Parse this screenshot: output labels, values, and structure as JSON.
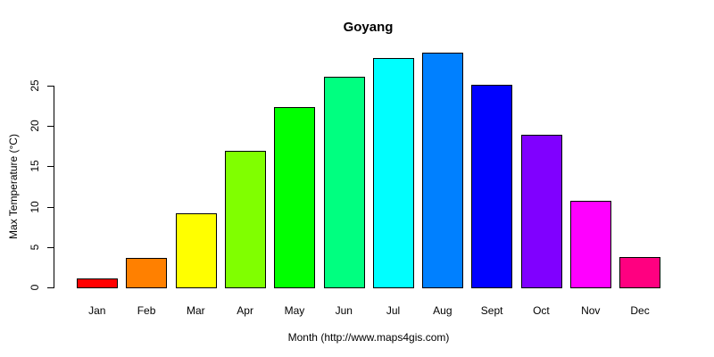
{
  "title": "Goyang",
  "chart_data": {
    "type": "bar",
    "title": "Goyang",
    "xlabel": "Month (http://www.maps4gis.com)",
    "ylabel": "Max Temperature (°C)",
    "categories": [
      "Jan",
      "Feb",
      "Mar",
      "Apr",
      "May",
      "Jun",
      "Jul",
      "Aug",
      "Sept",
      "Oct",
      "Nov",
      "Dec"
    ],
    "values": [
      1.1,
      3.7,
      9.2,
      16.9,
      22.3,
      26.1,
      28.4,
      29.1,
      25.1,
      18.9,
      10.7,
      3.8
    ],
    "bar_colors": [
      "#FF0000",
      "#FF8000",
      "#FFFF00",
      "#80FF00",
      "#00FF00",
      "#00FF80",
      "#00FFFF",
      "#0080FF",
      "#0000FF",
      "#8000FF",
      "#FF00FF",
      "#FF0080"
    ],
    "bar_border_color": "#000000",
    "yticks": [
      0,
      5,
      10,
      15,
      20,
      25
    ],
    "ylim": [
      0,
      29.1
    ],
    "grid": false,
    "legend": "none",
    "background_color": "#FFFFFF",
    "text_color": "#000000"
  }
}
